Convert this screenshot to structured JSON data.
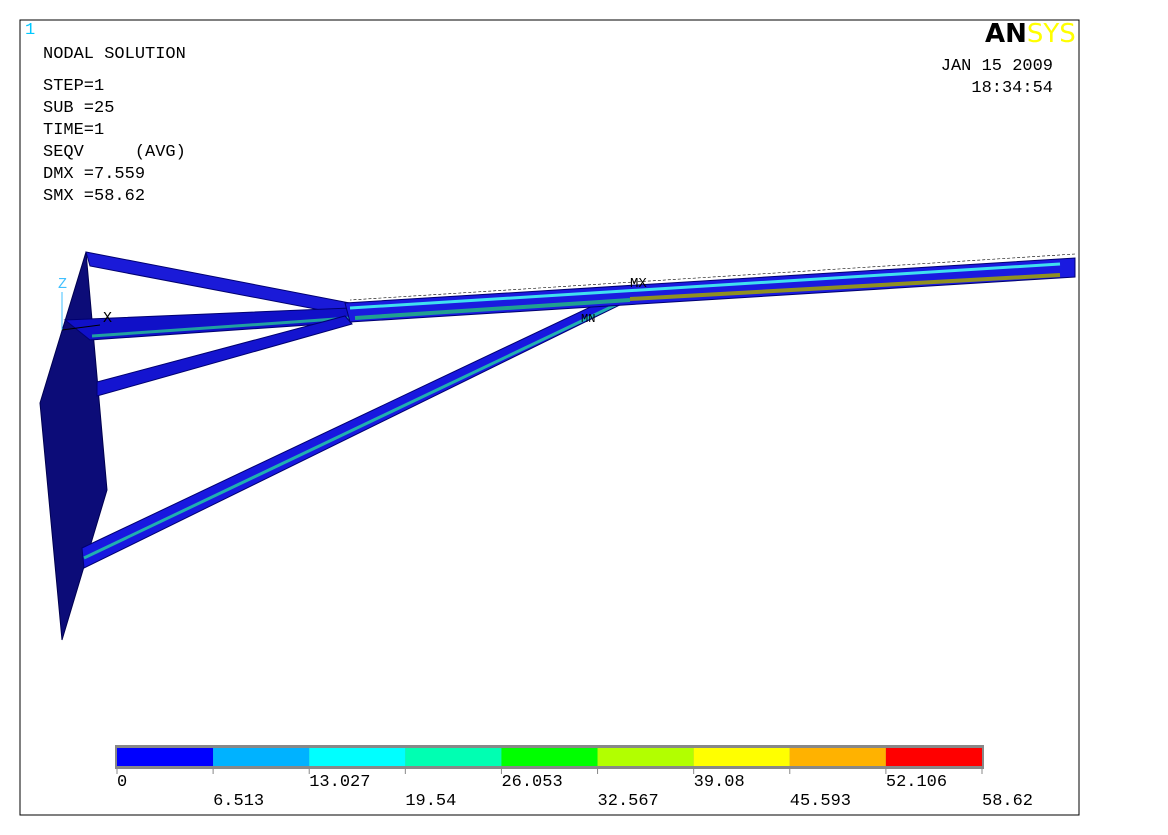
{
  "window_number": "1",
  "header": {
    "title": "NODAL SOLUTION",
    "lines": [
      "STEP=1",
      "SUB =25",
      "TIME=1",
      "SEQV     (AVG)",
      "DMX =7.559",
      "SMX =58.62"
    ]
  },
  "logo": {
    "part1": "AN",
    "part2": "SYS"
  },
  "date": "JAN 15 2009",
  "time": "18:34:54",
  "axis_labels": {
    "z": "Z",
    "x": "X"
  },
  "markers": {
    "max": "MX",
    "min": "MN"
  },
  "legend": {
    "colors": [
      "#0000ff",
      "#00b2ff",
      "#00ffff",
      "#00ffb2",
      "#00ff00",
      "#b2ff00",
      "#ffff00",
      "#ffb200",
      "#ff0000"
    ],
    "labels": [
      "0",
      "6.513",
      "13.027",
      "19.54",
      "26.053",
      "32.567",
      "39.08",
      "45.593",
      "52.106",
      "58.62"
    ]
  }
}
